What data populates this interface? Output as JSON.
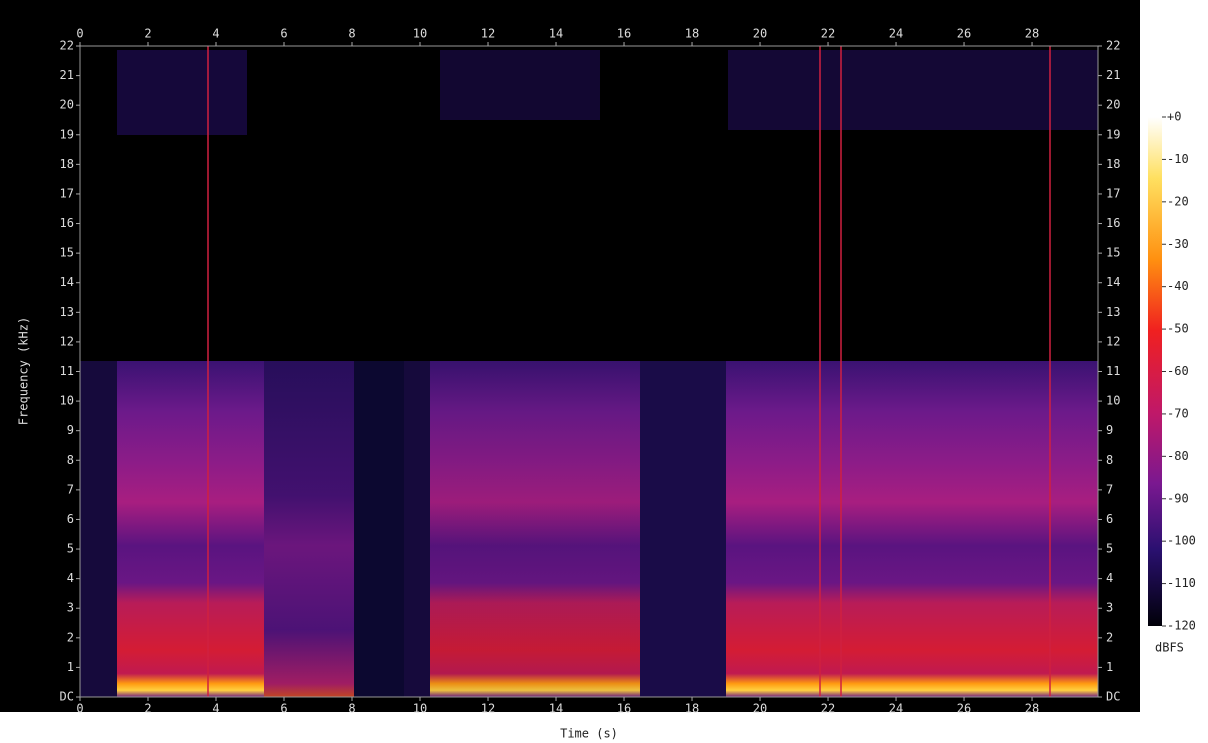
{
  "chart_data": {
    "type": "spectrogram",
    "x_label": "Time (s)",
    "y_label": "Frequency (kHz)",
    "xlim": [
      0,
      29.94
    ],
    "xticks": [
      0,
      2,
      4,
      6,
      8,
      10,
      12,
      14,
      16,
      18,
      20,
      22,
      24,
      26,
      28
    ],
    "ylim": [
      0,
      22
    ],
    "yticks": [
      {
        "value": 0,
        "label": "DC"
      },
      1,
      2,
      3,
      4,
      5,
      6,
      7,
      8,
      9,
      10,
      11,
      12,
      13,
      14,
      15,
      16,
      17,
      18,
      19,
      20,
      21,
      22
    ],
    "colorbar": {
      "label": "dBFS",
      "clim": [
        -120,
        0
      ],
      "ticks": [
        {
          "value": 0,
          "label": "+0"
        },
        -10,
        -20,
        -30,
        -40,
        -50,
        -60,
        -70,
        -80,
        -90,
        -100,
        -110,
        -120
      ]
    }
  }
}
